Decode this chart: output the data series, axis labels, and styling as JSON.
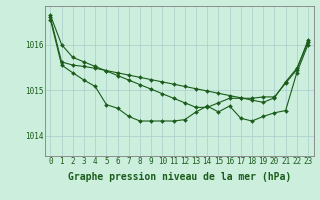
{
  "background_color": "#cceedd",
  "grid_color": "#aacccc",
  "line_color": "#1a5c1a",
  "xlabel": "Graphe pression niveau de la mer (hPa)",
  "xlabel_fontsize": 7,
  "tick_fontsize": 5.5,
  "xlim": [
    -0.5,
    23.5
  ],
  "ylim": [
    1013.55,
    1016.85
  ],
  "yticks": [
    1014,
    1015,
    1016
  ],
  "xticks": [
    0,
    1,
    2,
    3,
    4,
    5,
    6,
    7,
    8,
    9,
    10,
    11,
    12,
    13,
    14,
    15,
    16,
    17,
    18,
    19,
    20,
    21,
    22,
    23
  ],
  "series1": [
    1016.65,
    1016.0,
    1015.72,
    1015.62,
    1015.52,
    1015.42,
    1015.32,
    1015.22,
    1015.12,
    1015.02,
    1014.92,
    1014.82,
    1014.72,
    1014.62,
    1014.62,
    1014.72,
    1014.82,
    1014.82,
    1014.82,
    1014.85,
    1014.85,
    1015.15,
    1015.45,
    1016.1
  ],
  "series2": [
    1016.6,
    1015.62,
    1015.55,
    1015.52,
    1015.48,
    1015.43,
    1015.38,
    1015.33,
    1015.28,
    1015.23,
    1015.18,
    1015.13,
    1015.08,
    1015.03,
    1014.98,
    1014.93,
    1014.88,
    1014.83,
    1014.78,
    1014.73,
    1014.83,
    1015.18,
    1015.48,
    1016.05
  ],
  "series3": [
    1016.55,
    1015.55,
    1015.38,
    1015.22,
    1015.08,
    1014.68,
    1014.6,
    1014.42,
    1014.32,
    1014.32,
    1014.32,
    1014.32,
    1014.35,
    1014.52,
    1014.65,
    1014.52,
    1014.65,
    1014.38,
    1014.32,
    1014.42,
    1014.5,
    1014.55,
    1015.38,
    1016.0
  ]
}
